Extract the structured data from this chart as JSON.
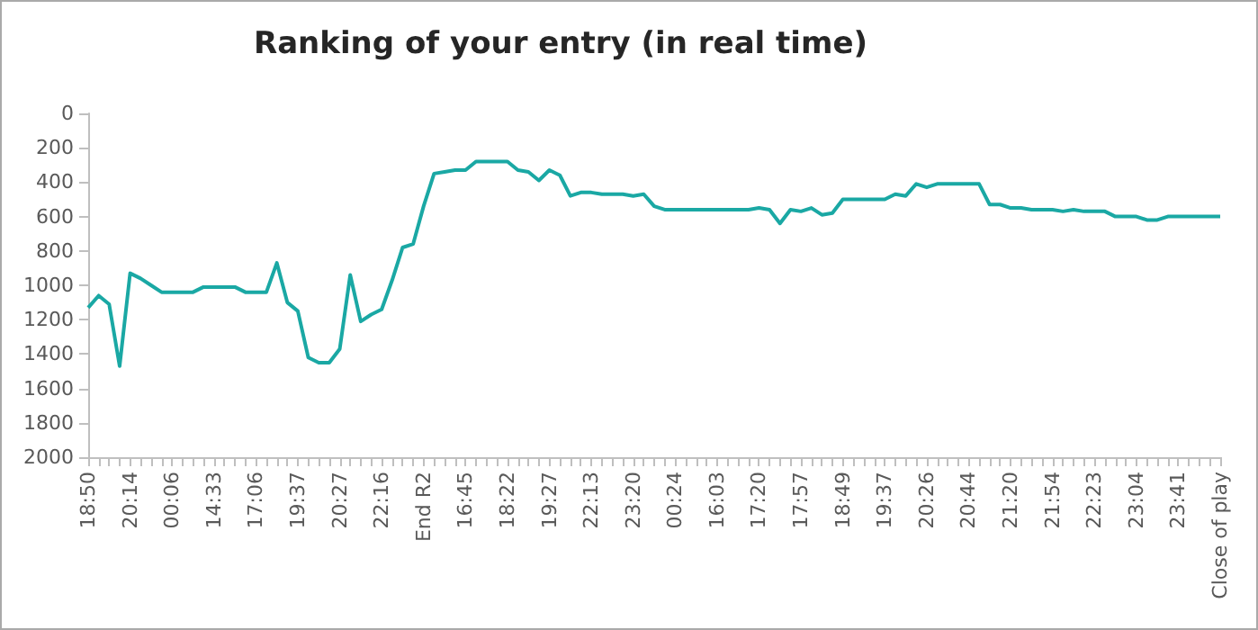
{
  "chart_data": {
    "type": "line",
    "title": "Ranking of your entry (in real time)",
    "categories": [
      "18:50",
      null,
      null,
      null,
      "20:14",
      null,
      null,
      null,
      "00:06",
      null,
      null,
      null,
      "14:33",
      null,
      null,
      null,
      "17:06",
      null,
      null,
      null,
      "19:37",
      null,
      null,
      null,
      "20:27",
      null,
      null,
      null,
      "22:16",
      null,
      null,
      null,
      "End R2",
      null,
      null,
      null,
      "16:45",
      null,
      null,
      null,
      "18:22",
      null,
      null,
      null,
      "19:27",
      null,
      null,
      null,
      "22:13",
      null,
      null,
      null,
      "23:20",
      null,
      null,
      null,
      "00:24",
      null,
      null,
      null,
      "16:03",
      null,
      null,
      null,
      "17:20",
      null,
      null,
      null,
      "17:57",
      null,
      null,
      null,
      "18:49",
      null,
      null,
      null,
      "19:37",
      null,
      null,
      null,
      "20:26",
      null,
      null,
      null,
      "20:44",
      null,
      null,
      null,
      "21:20",
      null,
      null,
      null,
      "21:54",
      null,
      null,
      null,
      "22:23",
      null,
      null,
      null,
      "23:04",
      null,
      null,
      null,
      "23:41",
      null,
      null,
      null,
      "Close of play"
    ],
    "series": [
      {
        "color": "#1aa8a4",
        "values": [
          1130,
          1060,
          1110,
          1470,
          930,
          960,
          1000,
          1040,
          1040,
          1040,
          1040,
          1010,
          1010,
          1010,
          1010,
          1040,
          1040,
          1040,
          870,
          1100,
          1150,
          1420,
          1450,
          1450,
          1370,
          940,
          1210,
          1170,
          1140,
          970,
          780,
          760,
          540,
          350,
          340,
          330,
          330,
          280,
          280,
          280,
          280,
          330,
          340,
          390,
          330,
          360,
          480,
          460,
          460,
          470,
          470,
          470,
          480,
          470,
          540,
          560,
          560,
          560,
          560,
          560,
          560,
          560,
          560,
          560,
          550,
          560,
          640,
          560,
          570,
          550,
          590,
          580,
          500,
          500,
          500,
          500,
          500,
          470,
          480,
          410,
          430,
          410,
          410,
          410,
          410,
          410,
          530,
          530,
          550,
          550,
          560,
          560,
          560,
          570,
          560,
          570,
          570,
          570,
          600,
          600,
          600,
          620,
          620,
          600,
          600,
          600,
          600,
          600,
          600
        ]
      }
    ],
    "ylim": [
      2000,
      0
    ],
    "yticks": [
      0,
      200,
      400,
      600,
      800,
      1000,
      1200,
      1400,
      1600,
      1800,
      2000
    ],
    "grid": false,
    "marker": "none",
    "line_style": "solid"
  }
}
